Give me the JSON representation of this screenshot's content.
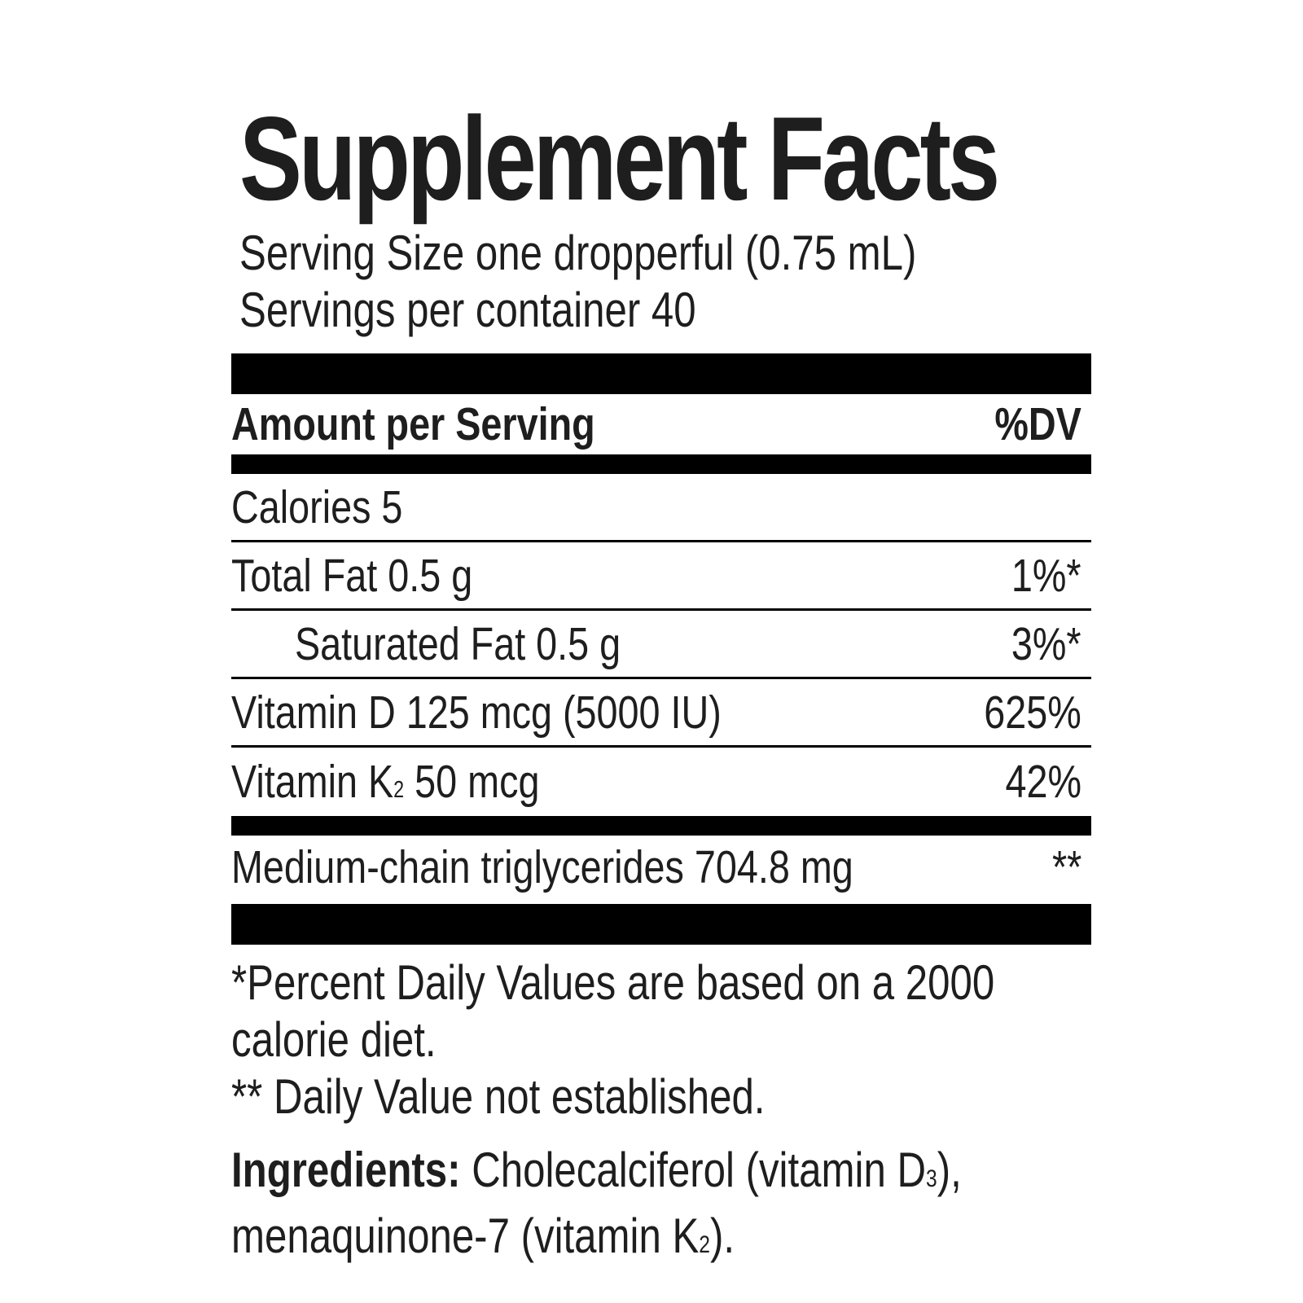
{
  "title": "Supplement Facts",
  "serving_size": "Serving Size one dropperful (0.75 mL)",
  "servings_per_container": "Servings per container 40",
  "header": {
    "amount_label": "Amount per Serving",
    "dv_label": "%DV"
  },
  "rows": [
    {
      "name": "Calories 5",
      "dv": ""
    },
    {
      "name": "Total Fat 0.5 g",
      "dv": "1%*"
    },
    {
      "name": "Saturated Fat 0.5 g",
      "dv": "3%*"
    },
    {
      "name": "Vitamin D 125 mcg (5000 IU)",
      "dv": "625%"
    },
    {
      "name_prefix": "Vitamin K",
      "name_sub": "2",
      "name_suffix": " 50 mcg",
      "dv": "42%"
    }
  ],
  "mct": {
    "name": "Medium-chain triglycerides 704.8 mg",
    "dv": "**"
  },
  "footnotes": {
    "line1": "*Percent Daily Values are based on a 2000",
    "line2": "calorie diet.",
    "line3": "** Daily Value not established."
  },
  "ingredients": {
    "label": "Ingredients:",
    "part1": " Cholecalciferol (vitamin D",
    "sub1": "3",
    "part2": "),",
    "part3": "menaquinone-7 (vitamin K",
    "sub2": "2",
    "part4": ")."
  }
}
